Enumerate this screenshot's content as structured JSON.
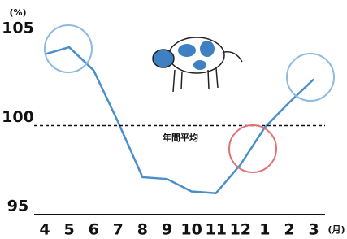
{
  "chart_data": {
    "type": "line",
    "y_unit": "(%)",
    "x_unit": "(月)",
    "annotation": "年間平均",
    "categories": [
      "4",
      "5",
      "6",
      "7",
      "8",
      "9",
      "10",
      "11",
      "12",
      "1",
      "2",
      "3"
    ],
    "series": [
      {
        "color": "#4a8fc9",
        "values": [
          104.0,
          104.4,
          103.1,
          100.2,
          97.1,
          97.0,
          96.3,
          96.2,
          97.8,
          99.9,
          101.3,
          102.6
        ]
      }
    ],
    "ylim": [
      95,
      106
    ],
    "yticks": [
      95,
      100,
      105
    ]
  }
}
